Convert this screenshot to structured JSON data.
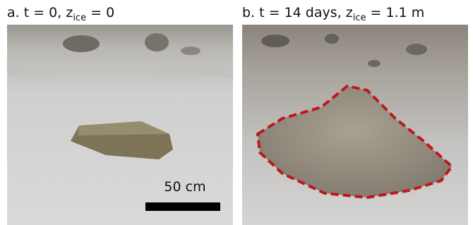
{
  "panels": [
    {
      "label": {
        "main": "a. t = 0, z",
        "sub": "ice",
        "tail": " = 0"
      },
      "scale_bar": "50 cm"
    },
    {
      "label": {
        "main": "b. t = 14 days, z",
        "sub": "ice",
        "tail": " = 1.1 m"
      }
    }
  ]
}
